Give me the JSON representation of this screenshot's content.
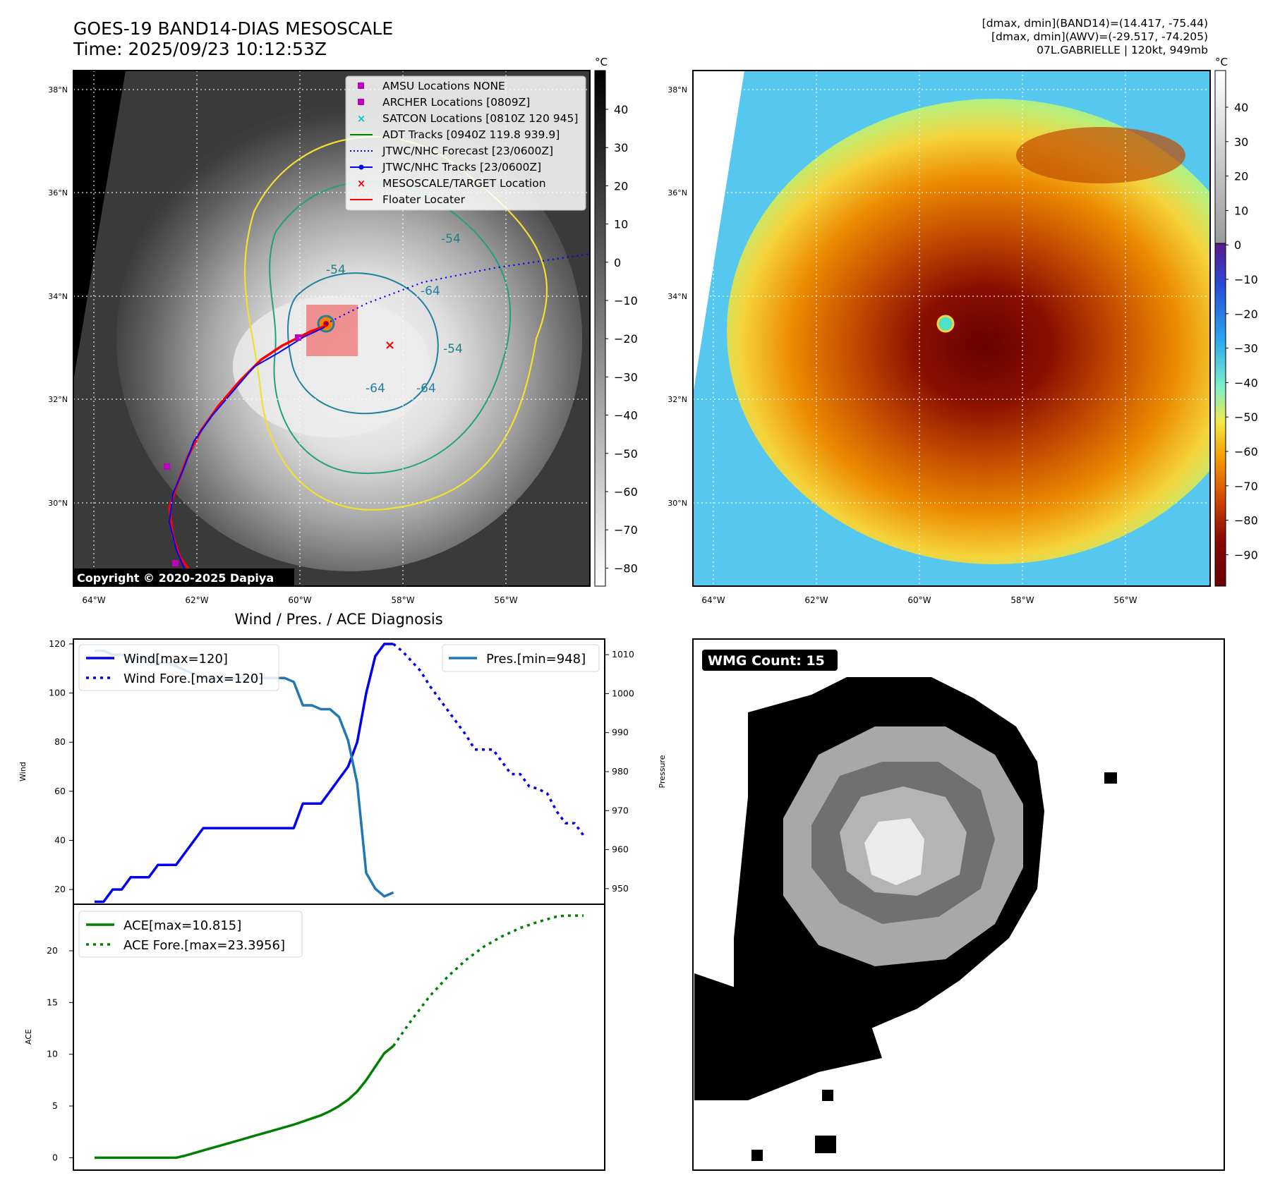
{
  "header": {
    "title": "GOES-19 BAND14-DIAS MESOSCALE",
    "time": "Time: 2025/09/23 10:12:53Z",
    "stats_band14": "[dmax, dmin](BAND14)=(14.417, -75.44)",
    "stats_awv": "[dmax, dmin](AWV)=(-29.517, -74.205)",
    "storm": "07L.GABRIELLE | 120kt, 949mb"
  },
  "map_axes": {
    "lat_ticks": [
      "38°N",
      "36°N",
      "34°N",
      "32°N",
      "30°N"
    ],
    "lon_ticks": [
      "64°W",
      "62°W",
      "60°W",
      "58°W",
      "56°W"
    ]
  },
  "ir_panel": {
    "copyright": "Copyright © 2020-2025 Dapiya",
    "colorbar_unit": "°C",
    "colorbar_ticks": [
      "40",
      "30",
      "20",
      "10",
      "0",
      "−10",
      "−20",
      "−30",
      "−40",
      "−50",
      "−60",
      "−70",
      "−80"
    ],
    "contour_labels": [
      "-54",
      "-54",
      "-64",
      "-64",
      "-54",
      "-64"
    ],
    "legend": [
      {
        "label": "AMSU Locations NONE",
        "color": "#c000c0",
        "marker": "square"
      },
      {
        "label": "ARCHER Locations [0809Z]",
        "color": "#c000c0",
        "marker": "square"
      },
      {
        "label": "SATCON Locations [0810Z 120 945]",
        "color": "#00c8c8",
        "marker": "x"
      },
      {
        "label": "ADT Tracks [0940Z 119.8 939.9]",
        "color": "#008000",
        "marker": "line"
      },
      {
        "label": "JTWC/NHC Forecast [23/0600Z]",
        "color": "#0000ff",
        "marker": "dotted"
      },
      {
        "label": "JTWC/NHC Tracks [23/0600Z]",
        "color": "#0000ff",
        "marker": "line-dot"
      },
      {
        "label": "MESOSCALE/TARGET Location",
        "color": "#ff0000",
        "marker": "x"
      },
      {
        "label": "Floater Locater",
        "color": "#ff0000",
        "marker": "line"
      }
    ]
  },
  "awv_panel": {
    "colorbar_unit": "°C",
    "colorbar_ticks": [
      "40",
      "30",
      "20",
      "10",
      "0",
      "−10",
      "−20",
      "−30",
      "−40",
      "−50",
      "−60",
      "−70",
      "−80",
      "−90"
    ]
  },
  "wmg_panel": {
    "label": "WMG Count: 15"
  },
  "chart_data": [
    {
      "type": "line",
      "title": "Wind / Pres. / ACE Diagnosis",
      "ylabel": "Wind",
      "ylabel_right": "Pressure",
      "ylim": [
        14,
        122
      ],
      "ylim_right": [
        946,
        1014
      ],
      "yticks": [
        "20",
        "40",
        "60",
        "80",
        "100",
        "120"
      ],
      "yticks_right": [
        "950",
        "960",
        "970",
        "980",
        "990",
        "1000",
        "1010"
      ],
      "x": [
        0,
        1,
        2,
        3,
        4,
        5,
        6,
        7,
        8,
        9,
        10,
        11,
        12,
        13,
        14,
        15,
        16,
        17,
        18,
        19,
        20,
        21,
        22,
        23,
        24,
        25,
        26,
        27,
        28,
        29,
        30,
        31,
        32,
        33,
        34,
        35,
        36,
        37,
        38,
        39,
        40,
        41,
        42,
        43,
        44,
        45,
        46,
        47,
        48,
        49,
        50
      ],
      "series": [
        {
          "name": "Wind[max=120]",
          "style": "solid",
          "color": "#0000ee",
          "points": [
            [
              0,
              15
            ],
            [
              1,
              15
            ],
            [
              2,
              20
            ],
            [
              3,
              20
            ],
            [
              4,
              25
            ],
            [
              5,
              25
            ],
            [
              6,
              25
            ],
            [
              7,
              30
            ],
            [
              8,
              30
            ],
            [
              9,
              30
            ],
            [
              10,
              35
            ],
            [
              11,
              40
            ],
            [
              12,
              45
            ],
            [
              13,
              45
            ],
            [
              14,
              45
            ],
            [
              15,
              45
            ],
            [
              16,
              45
            ],
            [
              17,
              45
            ],
            [
              18,
              45
            ],
            [
              19,
              45
            ],
            [
              20,
              45
            ],
            [
              21,
              45
            ],
            [
              22,
              45
            ],
            [
              23,
              55
            ],
            [
              24,
              55
            ],
            [
              25,
              55
            ],
            [
              26,
              60
            ],
            [
              27,
              65
            ],
            [
              28,
              70
            ],
            [
              29,
              80
            ],
            [
              30,
              100
            ],
            [
              31,
              115
            ],
            [
              32,
              120
            ],
            [
              33,
              120
            ]
          ]
        },
        {
          "name": "Wind Fore.[max=120]",
          "style": "dotted",
          "color": "#0000ee",
          "points": [
            [
              33,
              120
            ],
            [
              34,
              117
            ],
            [
              35,
              113
            ],
            [
              36,
              109
            ],
            [
              37,
              103
            ],
            [
              38,
              98
            ],
            [
              39,
              93
            ],
            [
              40,
              88
            ],
            [
              41,
              83
            ],
            [
              42,
              77
            ],
            [
              43,
              77
            ],
            [
              44,
              77
            ],
            [
              45,
              72
            ],
            [
              46,
              67
            ],
            [
              47,
              67
            ],
            [
              48,
              62
            ],
            [
              49,
              61
            ],
            [
              50,
              59
            ],
            [
              51,
              52
            ],
            [
              52,
              47
            ],
            [
              53,
              47
            ],
            [
              54,
              42
            ]
          ]
        },
        {
          "name": "Pres.[min=948]",
          "style": "solid",
          "color": "#1f77b4",
          "axis": "right",
          "points": [
            [
              0,
              1011
            ],
            [
              1,
              1011
            ],
            [
              2,
              1010
            ],
            [
              3,
              1010
            ],
            [
              4,
              1009
            ],
            [
              5,
              1009
            ],
            [
              6,
              1009
            ],
            [
              7,
              1008
            ],
            [
              8,
              1008
            ],
            [
              9,
              1007
            ],
            [
              10,
              1006
            ],
            [
              11,
              1005
            ],
            [
              12,
              1004
            ],
            [
              13,
              1004
            ],
            [
              14,
              1004
            ],
            [
              15,
              1004
            ],
            [
              16,
              1004
            ],
            [
              17,
              1004
            ],
            [
              18,
              1004
            ],
            [
              19,
              1004
            ],
            [
              20,
              1004
            ],
            [
              21,
              1004
            ],
            [
              22,
              1003
            ],
            [
              23,
              997
            ],
            [
              24,
              997
            ],
            [
              25,
              996
            ],
            [
              26,
              996
            ],
            [
              27,
              994
            ],
            [
              28,
              988
            ],
            [
              29,
              977
            ],
            [
              30,
              954
            ],
            [
              31,
              950
            ],
            [
              32,
              948
            ],
            [
              33,
              949
            ]
          ]
        }
      ]
    },
    {
      "type": "line",
      "ylabel": "ACE",
      "ylim": [
        -1.2,
        24.5
      ],
      "yticks": [
        "0",
        "5",
        "10",
        "15",
        "20"
      ],
      "series": [
        {
          "name": "ACE[max=10.815]",
          "style": "solid",
          "color": "#008000",
          "points": [
            [
              0,
              0
            ],
            [
              9,
              0
            ],
            [
              10,
              0.2
            ],
            [
              12,
              0.7
            ],
            [
              14,
              1.2
            ],
            [
              16,
              1.7
            ],
            [
              18,
              2.2
            ],
            [
              20,
              2.7
            ],
            [
              22,
              3.2
            ],
            [
              23,
              3.5
            ],
            [
              24,
              3.8
            ],
            [
              25,
              4.1
            ],
            [
              26,
              4.5
            ],
            [
              27,
              5.0
            ],
            [
              28,
              5.6
            ],
            [
              29,
              6.4
            ],
            [
              30,
              7.5
            ],
            [
              31,
              8.8
            ],
            [
              32,
              10.1
            ],
            [
              33,
              10.8
            ]
          ]
        },
        {
          "name": "ACE Fore.[max=23.3956]",
          "style": "dotted",
          "color": "#008000",
          "points": [
            [
              33,
              10.8
            ],
            [
              35,
              13.3
            ],
            [
              37,
              15.6
            ],
            [
              39,
              17.5
            ],
            [
              41,
              19.1
            ],
            [
              43,
              20.4
            ],
            [
              45,
              21.4
            ],
            [
              47,
              22.2
            ],
            [
              49,
              22.8
            ],
            [
              51,
              23.3
            ],
            [
              52,
              23.4
            ],
            [
              54,
              23.4
            ]
          ]
        }
      ]
    }
  ]
}
